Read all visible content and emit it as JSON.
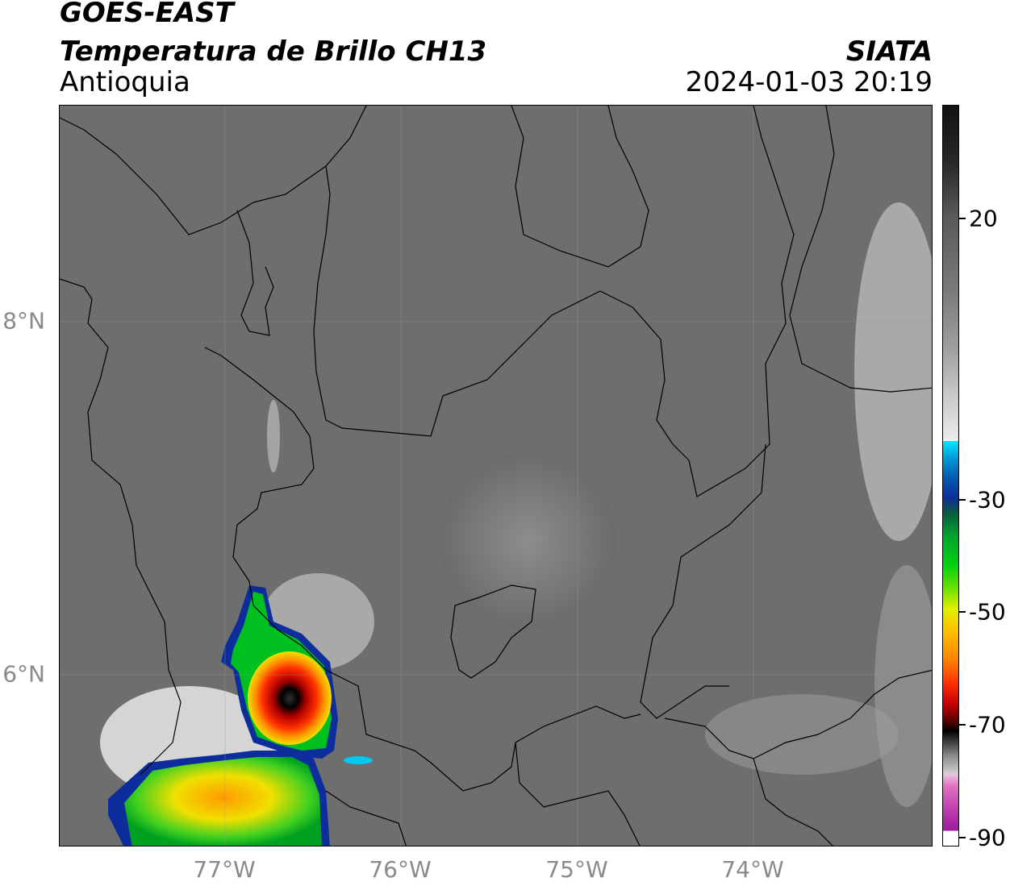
{
  "header": {
    "satellite": "GOES-EAST",
    "product": "Temperatura de Brillo CH13",
    "region": "Antioquia",
    "brand": "SIATA",
    "datetime": "2024-01-03 20:19"
  },
  "map": {
    "lat_labels": [
      "8°N",
      "6°N"
    ],
    "lon_labels": [
      "77°W",
      "76°W",
      "75°W",
      "74°W"
    ]
  },
  "colorbar": {
    "tick_labels": [
      "20",
      "-30",
      "-50",
      "-70",
      "-90"
    ],
    "range": [
      -90,
      40
    ],
    "colors": {
      "dark_top": "#111111",
      "gray": "#777777",
      "white": "#f2f2f2",
      "cyan": "#00e5ff",
      "blue": "#0d2d9c",
      "green": "#00c020",
      "yellow": "#f0f000",
      "orange": "#ff9000",
      "red": "#dd1000",
      "black": "#000000",
      "pink": "#e070c0",
      "purple": "#9a1aa0"
    }
  }
}
